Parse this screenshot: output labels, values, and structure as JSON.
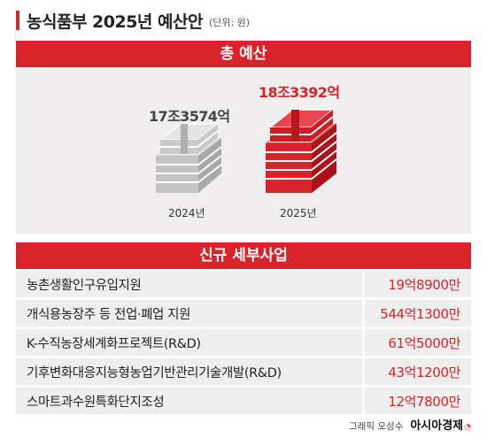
{
  "header": {
    "title": "농식품부 2025년 예산안",
    "unit": "(단위: 원)"
  },
  "total_section": {
    "label": "총 예산",
    "years": [
      {
        "year": "2024년",
        "amount": "17조3574억",
        "value_eok": 173574,
        "color": "#b5b5b5"
      },
      {
        "year": "2025년",
        "amount": "18조3392억",
        "value_eok": 183392,
        "color": "#d9232a"
      }
    ]
  },
  "projects_section": {
    "label": "신규 세부사업",
    "items": [
      {
        "name": "농촌생활인구유입지원",
        "amount": "19억8900만"
      },
      {
        "name": "개식용농장주 등 전업·폐업 지원",
        "amount": "544억1300만"
      },
      {
        "name": "K-수직농장세계화프로젝트(R&D)",
        "amount": "61억5000만"
      },
      {
        "name": "기후변화대응지능형농업기반관리기술개발(R&D)",
        "amount": "43억1200만"
      },
      {
        "name": "스마트과수원특화단지조성",
        "amount": "12억7800만"
      }
    ]
  },
  "credit": {
    "graphic": "그래픽 오성수",
    "brand": "아시아경제"
  },
  "colors": {
    "accent": "#d9232a",
    "panel": "#f0eeee",
    "row_bg": "#eeeeee"
  }
}
